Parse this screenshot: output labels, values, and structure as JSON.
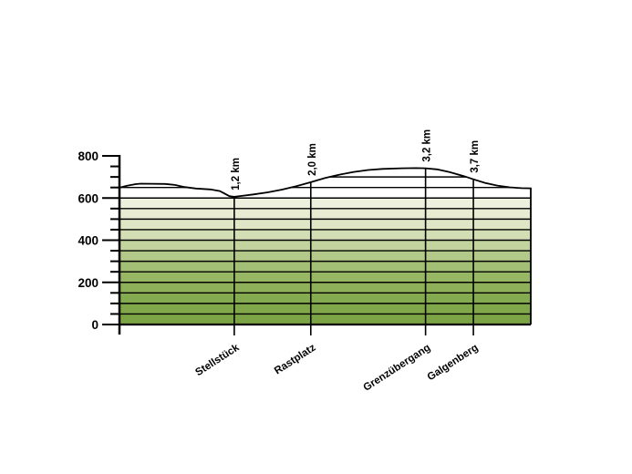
{
  "chart_data": {
    "type": "area",
    "title": "",
    "description": "Elevation profile of a trail with striped green gradient fill",
    "x_unit": "km",
    "y_unit": "m",
    "x_range": [
      0,
      4.3
    ],
    "y_range": [
      0,
      800
    ],
    "y_ticks_labeled": [
      "0",
      "200",
      "400",
      "600",
      "800"
    ],
    "y_tick_values": [
      0,
      200,
      400,
      600,
      800
    ],
    "y_minor_tick_step": 50,
    "band_step": 50,
    "grid": "horizontal-bands",
    "legend": "none",
    "line_color": "#000000",
    "background": "#ffffff",
    "band_colors_bottom_to_top": [
      "#7ca445",
      "#80a74a",
      "#85ab50",
      "#8db059",
      "#97b765",
      "#a3bf75",
      "#b2c989",
      "#c3d49f",
      "#d3deb4",
      "#dfe6c6",
      "#e7ecd3",
      "#eef0de"
    ],
    "profile_km_elevation": [
      [
        0,
        649
      ],
      [
        0.08,
        658
      ],
      [
        0.17,
        666
      ],
      [
        0.22,
        668
      ],
      [
        0.48,
        667
      ],
      [
        0.58,
        662
      ],
      [
        0.68,
        652
      ],
      [
        0.8,
        645
      ],
      [
        0.95,
        641
      ],
      [
        1.05,
        633
      ],
      [
        1.15,
        609
      ],
      [
        1.2,
        606
      ],
      [
        1.28,
        610
      ],
      [
        1.4,
        617
      ],
      [
        1.55,
        627
      ],
      [
        1.7,
        640
      ],
      [
        1.85,
        656
      ],
      [
        2.0,
        675
      ],
      [
        2.15,
        695
      ],
      [
        2.3,
        711
      ],
      [
        2.45,
        724
      ],
      [
        2.6,
        733
      ],
      [
        2.75,
        738
      ],
      [
        2.95,
        741
      ],
      [
        3.1,
        742
      ],
      [
        3.2,
        741
      ],
      [
        3.32,
        736
      ],
      [
        3.45,
        723
      ],
      [
        3.6,
        704
      ],
      [
        3.7,
        689
      ],
      [
        3.82,
        672
      ],
      [
        3.95,
        659
      ],
      [
        4.08,
        651
      ],
      [
        4.2,
        647
      ],
      [
        4.3,
        646
      ]
    ],
    "markers": [
      {
        "km": 1.2,
        "km_label": "1,2 km",
        "name": "Stellstück"
      },
      {
        "km": 2.0,
        "km_label": "2,0 km",
        "name": "Rastplatz"
      },
      {
        "km": 3.2,
        "km_label": "3,2 km",
        "name": "Grenzübergang"
      },
      {
        "km": 3.7,
        "km_label": "3,7 km",
        "name": "Galgenberg"
      }
    ]
  }
}
